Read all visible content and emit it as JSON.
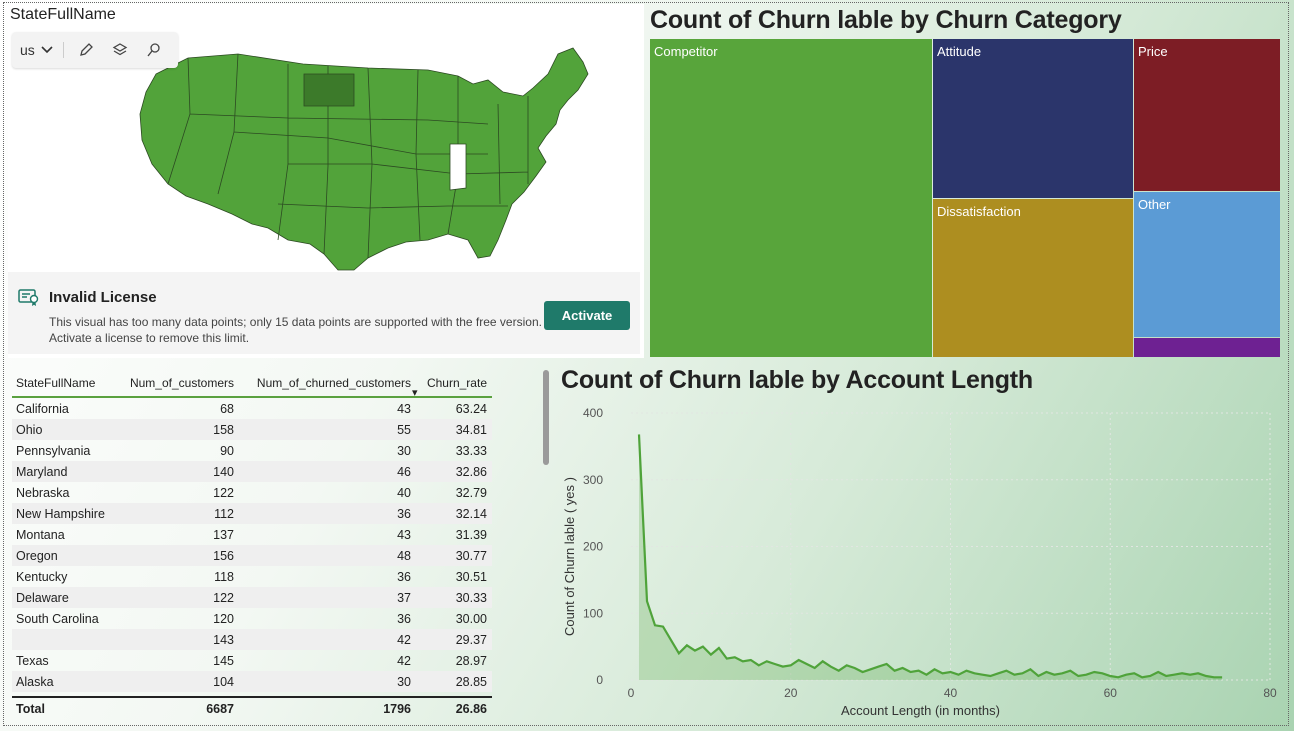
{
  "map": {
    "title": "StateFullName",
    "region_select": "us",
    "toolbar_icons": [
      "pencil-icon",
      "layers-icon",
      "search-icon"
    ],
    "license": {
      "title": "Invalid License",
      "message": "This visual has too many data points; only 15 data points are supported with the free version. Activate a license to remove this limit.",
      "button": "Activate"
    },
    "colors": {
      "state": "#52a33a",
      "highlight": "#3c7a2a",
      "border": "#2c4a22"
    }
  },
  "treemap": {
    "title": "Count of Churn lable by Churn Category",
    "cells": [
      {
        "label": "Competitor",
        "color": "#58a53b"
      },
      {
        "label": "Attitude",
        "color": "#2b356b"
      },
      {
        "label": "Price",
        "color": "#7d1d25"
      },
      {
        "label": "Dissatisfaction",
        "color": "#ad8e20"
      },
      {
        "label": "Other",
        "color": "#5b9bd5"
      },
      {
        "label": "",
        "color": "#6e2192"
      }
    ]
  },
  "table": {
    "headers": [
      "StateFullName",
      "Num_of_customers",
      "Num_of_churned_customers",
      "Churn_rate"
    ],
    "sort_indicator": "▾",
    "rows": [
      [
        "California",
        "68",
        "43",
        "63.24"
      ],
      [
        "Ohio",
        "158",
        "55",
        "34.81"
      ],
      [
        "Pennsylvania",
        "90",
        "30",
        "33.33"
      ],
      [
        "Maryland",
        "140",
        "46",
        "32.86"
      ],
      [
        "Nebraska",
        "122",
        "40",
        "32.79"
      ],
      [
        "New Hampshire",
        "112",
        "36",
        "32.14"
      ],
      [
        "Montana",
        "137",
        "43",
        "31.39"
      ],
      [
        "Oregon",
        "156",
        "48",
        "30.77"
      ],
      [
        "Kentucky",
        "118",
        "36",
        "30.51"
      ],
      [
        "Delaware",
        "122",
        "37",
        "30.33"
      ],
      [
        "South Carolina",
        "120",
        "36",
        "30.00"
      ],
      [
        "",
        "143",
        "42",
        "29.37"
      ],
      [
        "Texas",
        "145",
        "42",
        "28.97"
      ],
      [
        "Alaska",
        "104",
        "30",
        "28.85"
      ]
    ],
    "total": [
      "Total",
      "6687",
      "1796",
      "26.86"
    ]
  },
  "chart_data": {
    "type": "area",
    "title": "Count of Churn lable by Account Length",
    "xlabel": "Account Length (in months)",
    "ylabel": "Count of Churn lable ( yes )",
    "xlim": [
      0,
      80
    ],
    "ylim": [
      0,
      400
    ],
    "x_ticks": [
      "0",
      "20",
      "40",
      "60",
      "80"
    ],
    "y_ticks": [
      "0",
      "100",
      "200",
      "300",
      "400"
    ],
    "grid": true,
    "color": "#4fa33a",
    "x": [
      1,
      2,
      3,
      4,
      5,
      6,
      7,
      8,
      9,
      10,
      11,
      12,
      13,
      14,
      15,
      16,
      17,
      18,
      19,
      20,
      21,
      22,
      23,
      24,
      25,
      26,
      27,
      28,
      29,
      30,
      31,
      32,
      33,
      34,
      35,
      36,
      37,
      38,
      39,
      40,
      41,
      42,
      43,
      44,
      45,
      46,
      47,
      48,
      49,
      50,
      51,
      52,
      53,
      54,
      55,
      56,
      57,
      58,
      59,
      60,
      61,
      62,
      63,
      64,
      65,
      66,
      67,
      68,
      69,
      70,
      71,
      72,
      73,
      74
    ],
    "y": [
      368,
      118,
      82,
      80,
      60,
      40,
      52,
      44,
      50,
      38,
      48,
      32,
      34,
      28,
      30,
      22,
      28,
      24,
      20,
      22,
      30,
      24,
      18,
      28,
      20,
      14,
      22,
      18,
      12,
      16,
      20,
      24,
      14,
      18,
      12,
      14,
      8,
      16,
      10,
      12,
      8,
      14,
      10,
      8,
      6,
      10,
      14,
      8,
      10,
      16,
      6,
      12,
      8,
      10,
      14,
      6,
      8,
      12,
      10,
      6,
      4,
      8,
      10,
      4,
      6,
      12,
      6,
      8,
      10,
      8,
      10,
      6,
      4,
      4
    ]
  }
}
